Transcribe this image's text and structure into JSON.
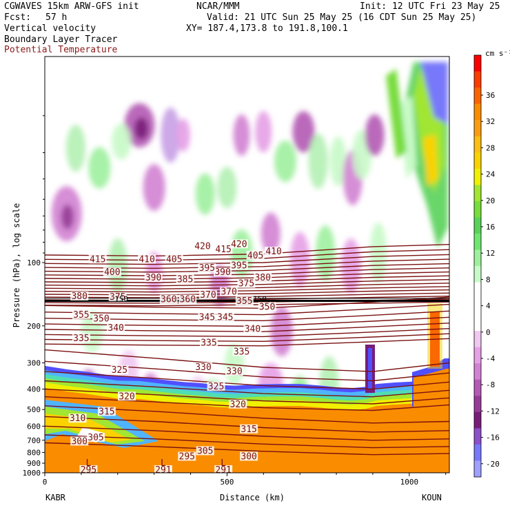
{
  "header": {
    "model": "CGWAVES 15km ARW-GFS init",
    "org": "NCAR/MMM",
    "init": "Init: 12 UTC Fri 23 May 25",
    "fcst_label": "Fcst:",
    "fcst_value": "57 h",
    "valid": "Valid: 21 UTC Sun 25 May 25 (16 CDT Sun 25 May 25)",
    "field1": "Vertical velocity",
    "xy": "XY= 187.4,173.8 to 191.8,100.1",
    "field2": "Boundary Layer Tracer",
    "field3": "Potential Temperature"
  },
  "chart_data": {
    "type": "heatmap",
    "xlabel": "Distance (km)",
    "ylabel": "Pressure (hPa), log scale",
    "x_ticks": [
      0,
      500,
      1000
    ],
    "xlim": [
      0,
      1110
    ],
    "y_ticks": [
      100,
      200,
      300,
      400,
      500,
      600,
      700,
      800,
      900,
      1000
    ],
    "y_scale": "log",
    "endpoints": {
      "left": "KABR",
      "right": "KOUN"
    },
    "colorbar": {
      "units": "cm s⁻¹",
      "labels": [
        36,
        32,
        28,
        24,
        20,
        16,
        12,
        8,
        4,
        0,
        -4,
        -8,
        -12,
        -16,
        -20
      ],
      "colors": [
        "#fa0000",
        "#fa3c00",
        "#fa6400",
        "#fa8c00",
        "#fa9c12",
        "#fabe14",
        "#fad200",
        "#f0f000",
        "#a0e632",
        "#78dc3c",
        "#5ad25a",
        "#70e670",
        "#9ef09e",
        "#c8fac8",
        "#ffffff",
        "#ffffff",
        "#ffffff",
        "#f0c8f0",
        "#e6a0e6",
        "#d282d2",
        "#b45ab4",
        "#963c96",
        "#781e78",
        "#8c50c8",
        "#7878fa",
        "#a0a0ff"
      ]
    },
    "isentropes": [
      {
        "value": 295,
        "labels": [
          [
            120,
            985
          ]
        ]
      },
      {
        "value": 291,
        "labels": [
          [
            325,
            985
          ],
          [
            490,
            985
          ]
        ]
      },
      {
        "value": 300,
        "labels": [
          [
            95,
            720
          ],
          [
            560,
            850
          ]
        ]
      },
      {
        "value": 305,
        "labels": [
          [
            140,
            690
          ],
          [
            440,
            800
          ]
        ]
      },
      {
        "value": 295,
        "labels": [
          [
            390,
            850
          ]
        ]
      },
      {
        "value": 310,
        "labels": [
          [
            90,
            560
          ]
        ]
      },
      {
        "value": 315,
        "labels": [
          [
            170,
            520
          ],
          [
            560,
            630
          ]
        ]
      },
      {
        "value": 320,
        "labels": [
          [
            225,
            440
          ],
          [
            530,
            480
          ]
        ]
      },
      {
        "value": 325,
        "labels": [
          [
            205,
            330
          ],
          [
            470,
            395
          ]
        ]
      },
      {
        "value": 330,
        "labels": [
          [
            435,
            320
          ],
          [
            520,
            335
          ]
        ]
      },
      {
        "value": 335,
        "labels": [
          [
            100,
            233
          ],
          [
            450,
            245
          ],
          [
            540,
            270
          ]
        ]
      },
      {
        "value": 340,
        "labels": [
          [
            195,
            208
          ],
          [
            570,
            210
          ]
        ]
      },
      {
        "value": 345,
        "labels": [
          [
            445,
            185
          ],
          [
            495,
            185
          ]
        ]
      },
      {
        "value": 350,
        "labels": [
          [
            155,
            188
          ],
          [
            610,
            165
          ]
        ]
      },
      {
        "value": 355,
        "labels": [
          [
            100,
            180
          ],
          [
            548,
            155
          ]
        ]
      },
      {
        "value": 360,
        "labels": [
          [
            340,
            152
          ],
          [
            392,
            152
          ]
        ]
      },
      {
        "value": 370,
        "labels": [
          [
            448,
            145
          ],
          [
            505,
            140
          ]
        ]
      },
      {
        "value": 375,
        "labels": [
          [
            200,
            148
          ],
          [
            553,
            128
          ]
        ]
      },
      {
        "value": 380,
        "labels": [
          [
            95,
            147
          ],
          [
            598,
            120
          ]
        ]
      },
      {
        "value": 385,
        "labels": [
          [
            385,
            122
          ]
        ]
      },
      {
        "value": 390,
        "labels": [
          [
            298,
            120
          ],
          [
            488,
            113
          ]
        ]
      },
      {
        "value": 395,
        "labels": [
          [
            445,
            108
          ],
          [
            533,
            105
          ]
        ]
      },
      {
        "value": 400,
        "labels": [
          [
            185,
            113
          ]
        ]
      },
      {
        "value": 405,
        "labels": [
          [
            355,
            98
          ],
          [
            578,
            94
          ]
        ]
      },
      {
        "value": 410,
        "labels": [
          [
            280,
            98
          ],
          [
            628,
            90
          ]
        ]
      },
      {
        "value": 415,
        "labels": [
          [
            145,
            98
          ],
          [
            490,
            88
          ]
        ]
      },
      {
        "value": 420,
        "labels": [
          [
            433,
            85
          ],
          [
            533,
            83
          ]
        ]
      }
    ],
    "tropopause_labels": [
      {
        "text": "150",
        "x": 210,
        "p": 150
      },
      {
        "text": "150",
        "x": 590,
        "p": 150
      }
    ]
  }
}
